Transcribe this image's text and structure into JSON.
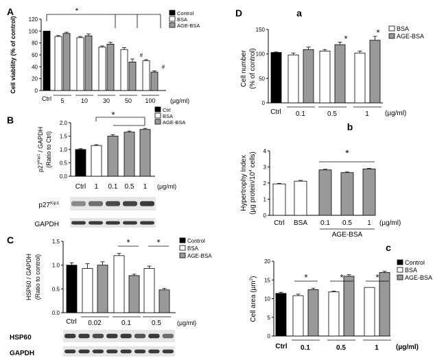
{
  "colors": {
    "ctrl": "#000000",
    "bsa": "#ffffff",
    "age": "#999999",
    "ctrl_soft": "#333333",
    "blot": "#3a3a3a"
  },
  "chart_data": [
    {
      "id": "A",
      "panel_label": "A",
      "type": "bar",
      "ylabel": "Cell viability (% of control)",
      "ylim": [
        0,
        120
      ],
      "yticks": [
        0,
        20,
        40,
        60,
        80,
        100,
        120
      ],
      "legend": [
        "Control",
        "BSA",
        "AGE-BSA"
      ],
      "groups": [
        "Ctrl",
        "5",
        "10",
        "30",
        "50",
        "100"
      ],
      "unit": "(µg/ml)",
      "ctrl": 100,
      "bsa": [
        91,
        89,
        73,
        69,
        50
      ],
      "age": [
        96,
        92,
        78,
        48,
        31
      ],
      "bsa_err": [
        1.5,
        2,
        2,
        3,
        2
      ],
      "age_err": [
        2,
        3,
        3,
        5,
        2
      ],
      "annotations": [
        "*",
        "#",
        "#"
      ]
    },
    {
      "id": "B",
      "panel_label": "B",
      "type": "bar",
      "ylabel": "p27Kip1 / GAPDH (Ratio to Ctrl)",
      "ylabel_pre": "p27",
      "ylabel_sup": "Kip1",
      "ylabel_post": " / GAPDH",
      "ylabel2": "(Ratio to Ctrl)",
      "ylim": [
        0,
        2
      ],
      "yticks": [
        0,
        0.5,
        1,
        1.5,
        2
      ],
      "ytick_labels": [
        "0.0",
        "0.5",
        "1.0",
        "1.5",
        "2.0"
      ],
      "legend": [
        "Ctrl",
        "BSA",
        "AGE-BSA"
      ],
      "categories": [
        "Ctrl",
        "1",
        "0.1",
        "0.5",
        "1"
      ],
      "unit": "(µg/ml)",
      "values": [
        1.0,
        1.15,
        1.5,
        1.65,
        1.75
      ],
      "errors": [
        0.03,
        0.03,
        0.05,
        0.04,
        0.04
      ],
      "annotation": "*",
      "blot_labels": [
        "p27Kip1",
        "GAPDH"
      ],
      "blot_pre": "p27",
      "blot_sup": "Kip1"
    },
    {
      "id": "C",
      "panel_label": "C",
      "type": "bar",
      "ylabel": "HSP60 / GAPDH (Ratio to control)",
      "ylabel1": "HSP60 / GAPDH",
      "ylabel2": "(Ratio to control)",
      "ylim": [
        0,
        1.5
      ],
      "yticks": [
        0,
        0.5,
        1,
        1.5
      ],
      "ytick_labels": [
        "0.0",
        "0.5",
        "1.0",
        "1.5"
      ],
      "legend": [
        "Control",
        "BSA",
        "AGE-BSA"
      ],
      "groups": [
        "Ctrl",
        "0.02",
        "0.1",
        "0.5"
      ],
      "unit": "(µg/ml)",
      "ctrl": 1.0,
      "bsa": [
        0.93,
        1.2,
        0.93
      ],
      "age": [
        1.0,
        0.78,
        0.48
      ],
      "bsa_err": [
        0.1,
        0.05,
        0.05
      ],
      "age_err": [
        0.07,
        0.03,
        0.03
      ],
      "annotations": [
        "*",
        "*"
      ],
      "blot_labels": [
        "HSP60",
        "GAPDH"
      ]
    },
    {
      "id": "Da",
      "panel_label": "D",
      "sub_label": "a",
      "type": "bar",
      "ylabel": "Cell number (% of control)",
      "ylabel1": "Cell number",
      "ylabel2": "(% of control)",
      "ylim": [
        0,
        150
      ],
      "yticks": [
        0,
        50,
        100,
        150
      ],
      "legend": [
        "BSA",
        "AGE-BSA"
      ],
      "groups": [
        "Ctrl",
        "0.1",
        "0.5",
        "1"
      ],
      "unit": "(µg/ml)",
      "ctrl": 103,
      "bsa": [
        98,
        106,
        102
      ],
      "age": [
        109,
        119,
        128
      ],
      "bsa_err": [
        4,
        3,
        4
      ],
      "age_err": [
        5,
        5,
        8
      ],
      "annotations": [
        "*",
        "*"
      ]
    },
    {
      "id": "Db",
      "sub_label": "b",
      "type": "bar",
      "ylabel": "Hypertrophy Index (µg protein/10^4 cells)",
      "ylabel1": "Hypertrophy Index",
      "ylabel2_pre": "(µg protein/10",
      "ylabel2_sup": "4",
      "ylabel2_post": " cells)",
      "ylim": [
        0,
        4
      ],
      "yticks": [
        0,
        1,
        2,
        3,
        4
      ],
      "categories": [
        "Ctrl",
        "BSA",
        "0.1",
        "0.5",
        "1"
      ],
      "unit": "(µg/ml)",
      "group_label": "AGE-BSA",
      "values": [
        1.95,
        2.12,
        2.82,
        2.65,
        2.88
      ],
      "errors": [
        0.03,
        0.05,
        0.04,
        0.04,
        0.03
      ],
      "annotation": "*"
    },
    {
      "id": "Dc",
      "sub_label": "c",
      "type": "bar",
      "ylabel": "Cell area (µm2)",
      "ylabel_pre": "Cell area  (µm",
      "ylabel_sup": "2",
      "ylabel_post": ")",
      "ylim": [
        0,
        20
      ],
      "yticks": [
        0,
        5,
        10,
        15,
        20
      ],
      "legend": [
        "Control",
        "BSA",
        "AGE-BSA"
      ],
      "groups": [
        "Ctrl",
        "0.1",
        "0.5",
        "1"
      ],
      "unit": "(µg/ml)",
      "ctrl": 11.4,
      "bsa": [
        10.8,
        11.8,
        13.0
      ],
      "age": [
        12.4,
        16.0,
        17.0
      ],
      "bsa_err": [
        0.4,
        0.2,
        0
      ],
      "age_err": [
        0.4,
        0.4,
        0.3
      ],
      "annotations": [
        "*",
        "*",
        "*"
      ]
    }
  ]
}
